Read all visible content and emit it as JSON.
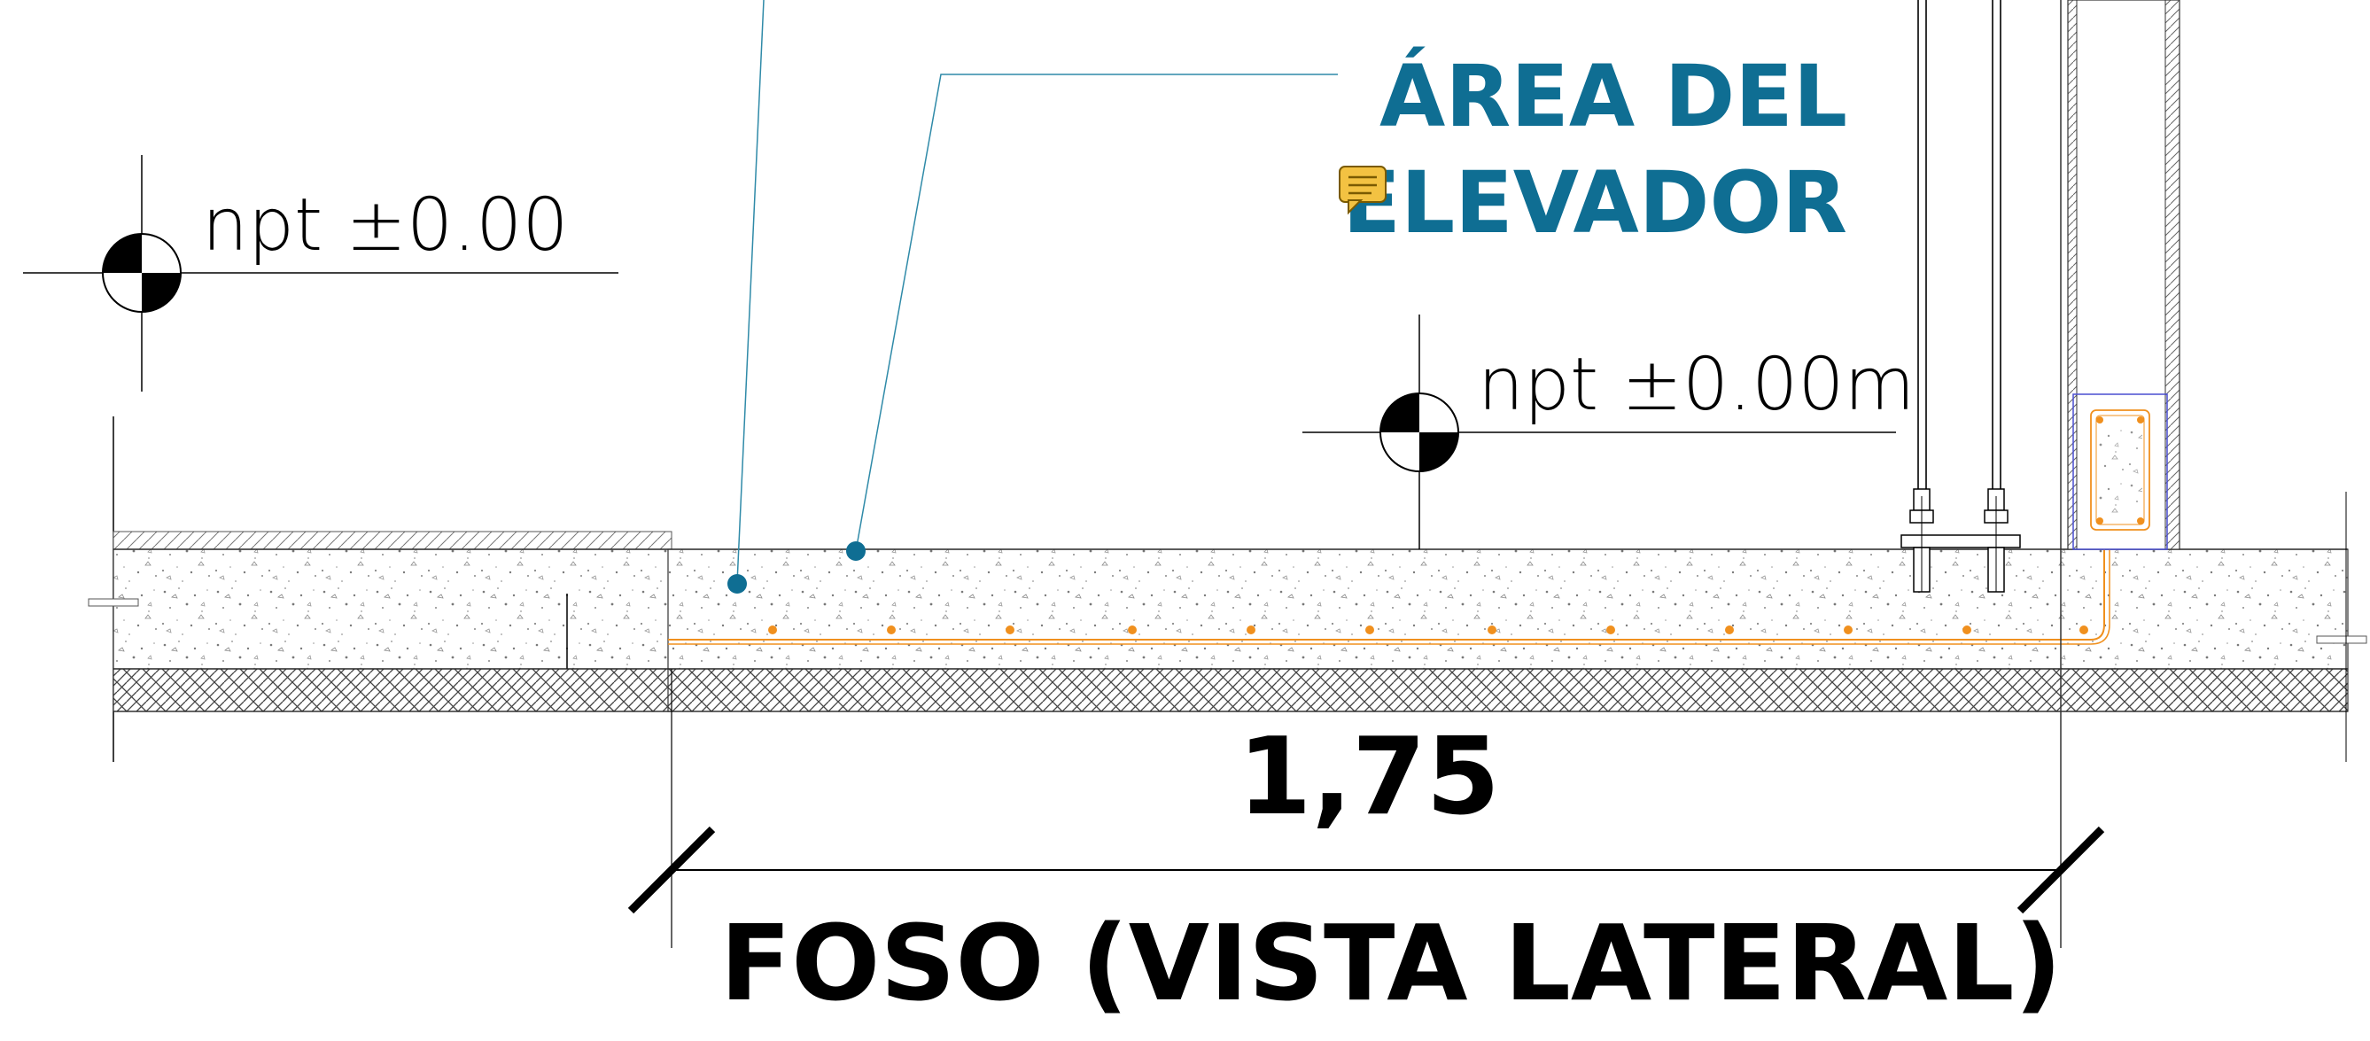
{
  "labels": {
    "area_line1": "ÁREA DEL",
    "area_line2": "ELEVADOR",
    "level_left": "npt ±0.00",
    "level_right": "npt ±0.00m",
    "dimension": "1,75",
    "title": "FOSO (VISTA LATERAL)"
  },
  "colors": {
    "annotation_blue": "#0f6e93",
    "rebar_orange": "#f0901e",
    "comment_icon_yellow": "#f3c242",
    "wall_blue_outline": "#4a4fd1",
    "line_black": "#000000",
    "leader_blue": "#2f8aa8"
  },
  "icons": {
    "comment": "comment-icon",
    "level_marker": "level-marker-icon",
    "anchor_bolt": "anchor-bolt-icon"
  }
}
